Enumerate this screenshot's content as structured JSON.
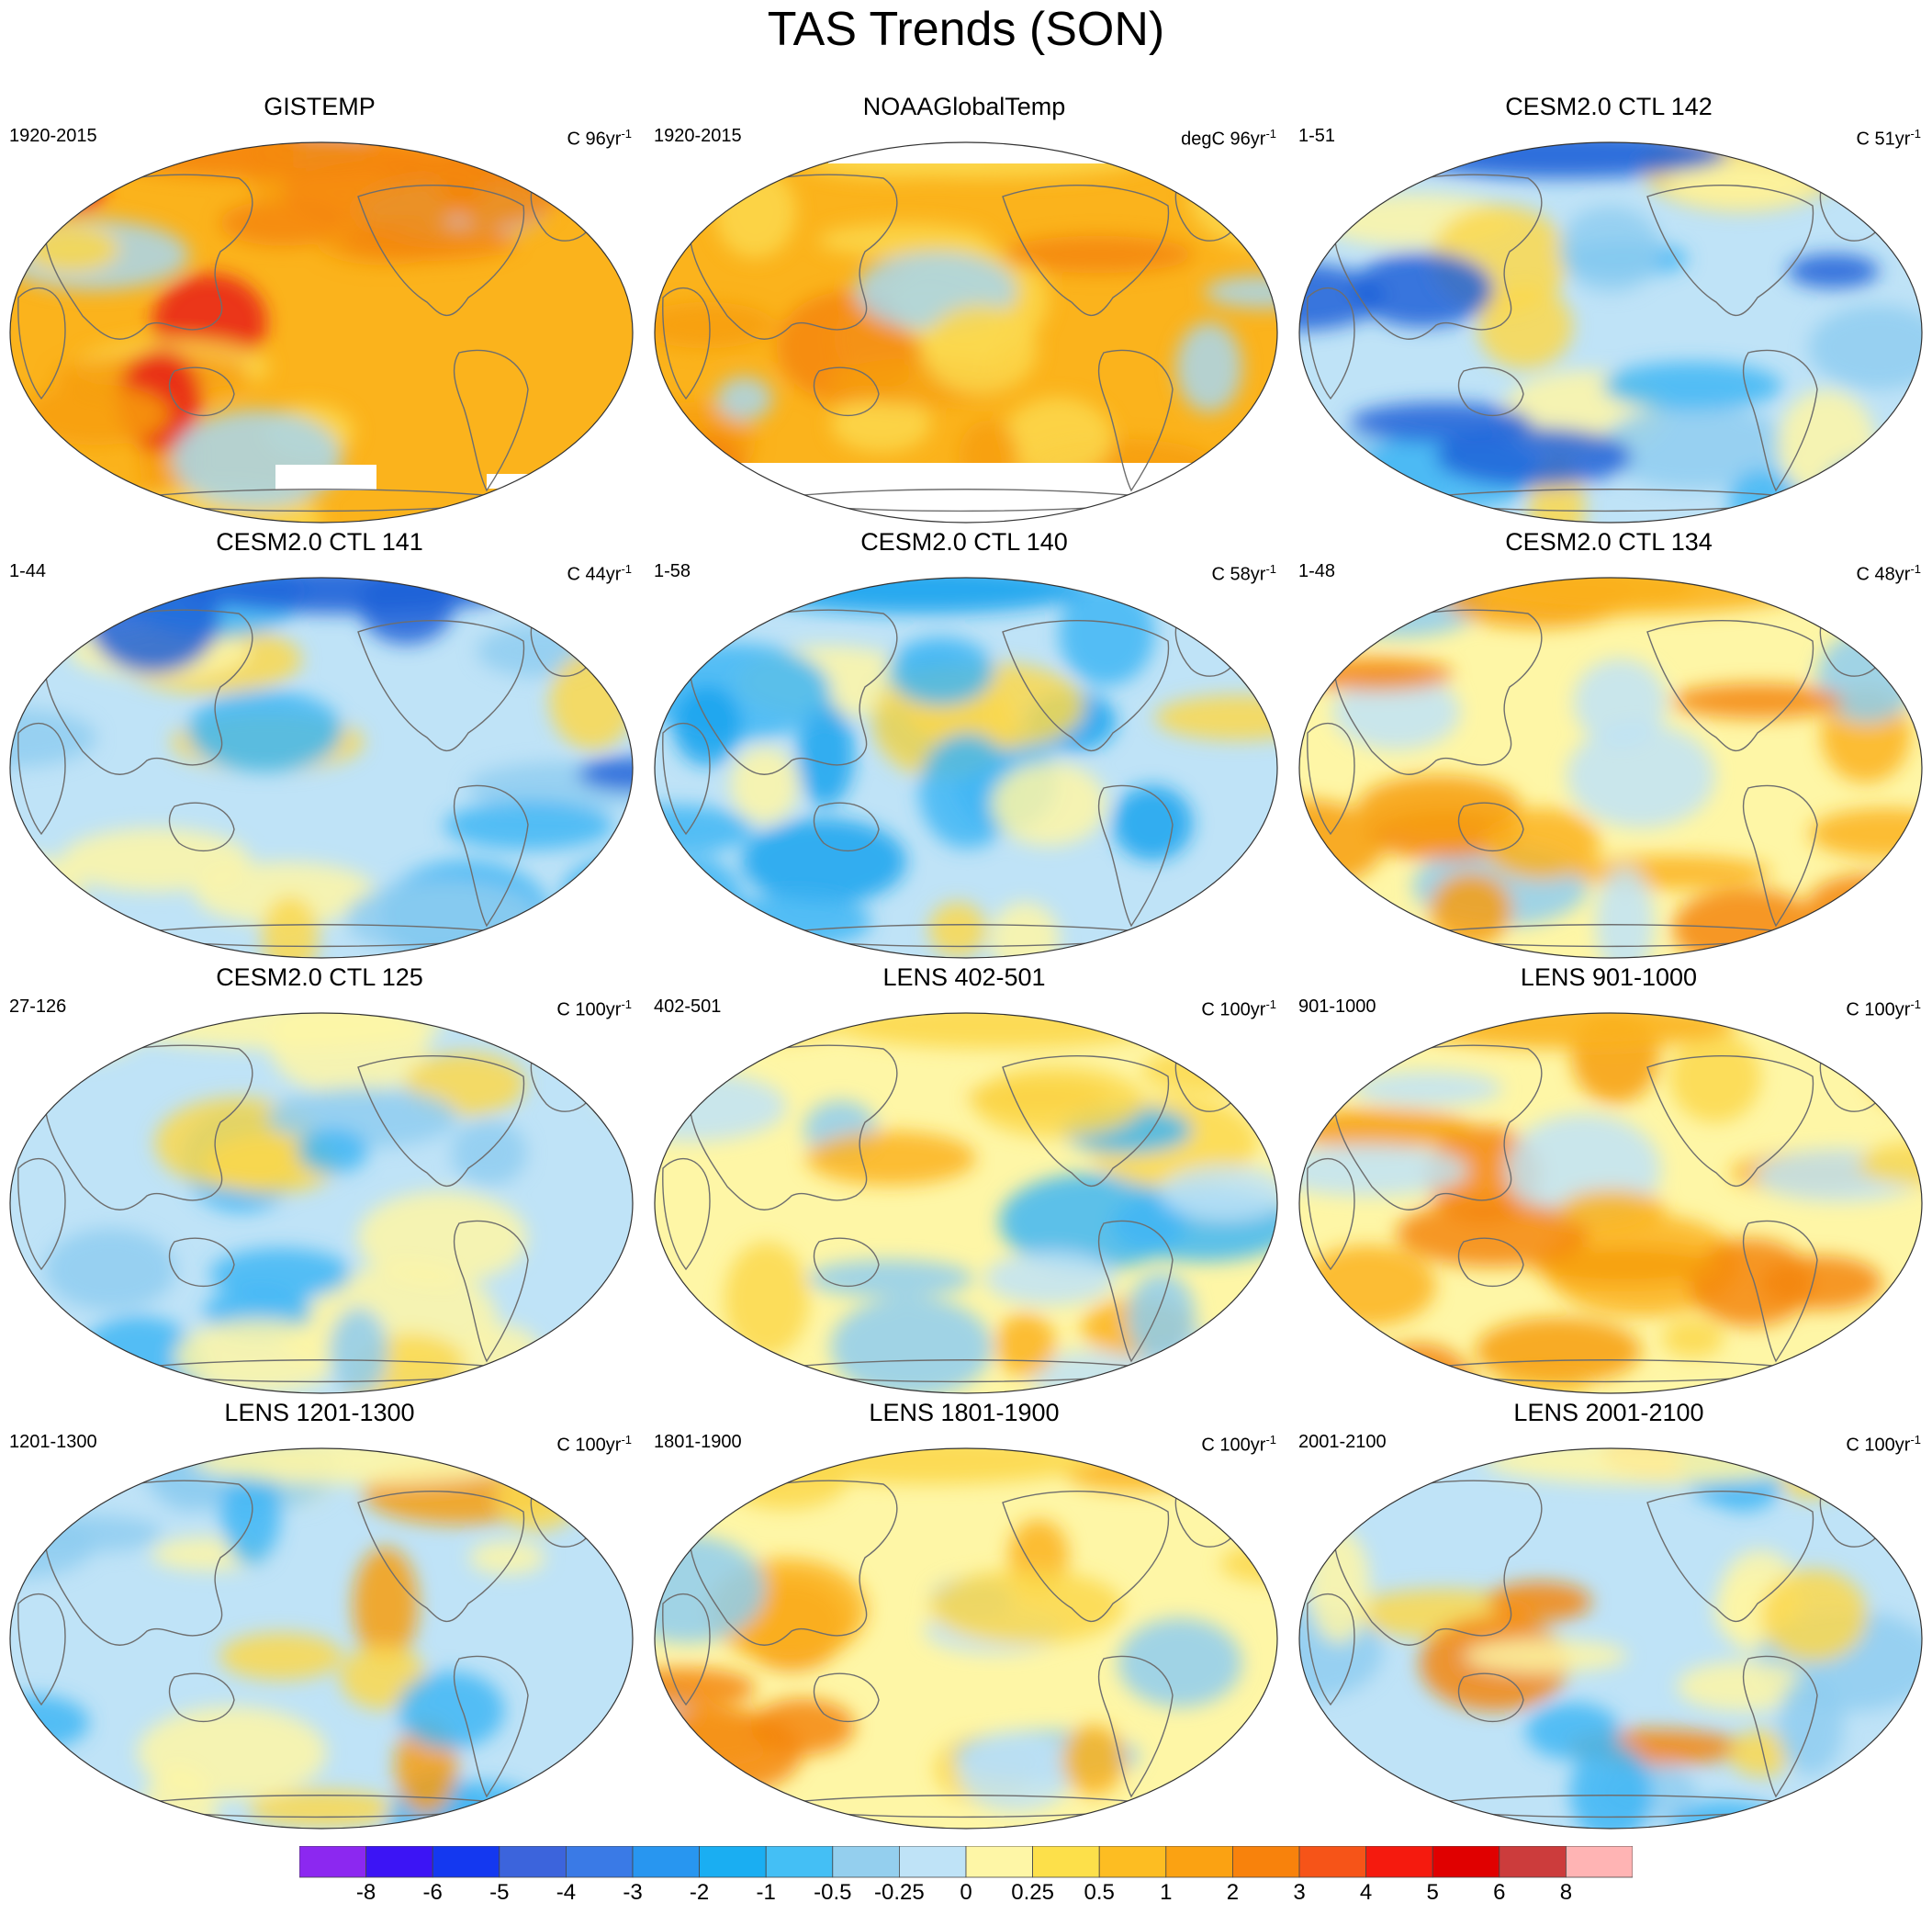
{
  "title": "TAS Trends (SON)",
  "panels": [
    {
      "title": "GISTEMP",
      "left_label": "1920-2015",
      "unit": "C",
      "years": "96",
      "base": "#fbb31c",
      "blobs": [
        "#f79d10",
        "#f5860b",
        "#e8201a",
        "#fcd84d",
        "#a8d6ef"
      ],
      "mask": "gistemp"
    },
    {
      "title": "NOAAGlobalTemp",
      "left_label": "1920-2015",
      "unit": "degC",
      "years": "96",
      "base": "#fbb31c",
      "blobs": [
        "#f79d10",
        "#fcd84d",
        "#a8d6ef",
        "#f5860b",
        "#fcd84d"
      ],
      "mask": "noaa"
    },
    {
      "title": "CESM2.0 CTL 142",
      "left_label": "1-51",
      "unit": "C",
      "years": "51",
      "base": "#bfe3f7",
      "blobs": [
        "#3fb6f4",
        "#1e62d8",
        "#fef6a6",
        "#fcd84d",
        "#8fcdf0"
      ],
      "mask": ""
    },
    {
      "title": "CESM2.0 CTL 141",
      "left_label": "1-44",
      "unit": "C",
      "years": "44",
      "base": "#bfe3f7",
      "blobs": [
        "#3fb6f4",
        "#1e62d8",
        "#fef6a6",
        "#fcd84d",
        "#8fcdf0"
      ],
      "mask": ""
    },
    {
      "title": "CESM2.0 CTL 140",
      "left_label": "1-58",
      "unit": "C",
      "years": "58",
      "base": "#bfe3f7",
      "blobs": [
        "#3fb6f4",
        "#1aa3ee",
        "#fef6a6",
        "#fcd84d",
        "#3fb6f4"
      ],
      "mask": ""
    },
    {
      "title": "CESM2.0 CTL 134",
      "left_label": "1-48",
      "unit": "C",
      "years": "48",
      "base": "#fef6a6",
      "blobs": [
        "#f5860b",
        "#fbb31c",
        "#8fcdf0",
        "#bfe3f7",
        "#f79d10"
      ],
      "mask": ""
    },
    {
      "title": "CESM2.0 CTL 125",
      "left_label": "27-126",
      "unit": "C",
      "years": "100",
      "base": "#bfe3f7",
      "blobs": [
        "#3fb6f4",
        "#fef6a6",
        "#fcd84d",
        "#8fcdf0",
        "#fef6a6"
      ],
      "mask": ""
    },
    {
      "title": "LENS 402-501",
      "left_label": "402-501",
      "unit": "C",
      "years": "100",
      "base": "#fef6a6",
      "blobs": [
        "#bfe3f7",
        "#fcd84d",
        "#8fcdf0",
        "#fbb31c",
        "#3fb6f4"
      ],
      "mask": ""
    },
    {
      "title": "LENS 901-1000",
      "left_label": "901-1000",
      "unit": "C",
      "years": "100",
      "base": "#fef6a6",
      "blobs": [
        "#f5860b",
        "#fbb31c",
        "#bfe3f7",
        "#fcd84d",
        "#f79d10"
      ],
      "mask": ""
    },
    {
      "title": "LENS 1201-1300",
      "left_label": "1201-1300",
      "unit": "C",
      "years": "100",
      "base": "#bfe3f7",
      "blobs": [
        "#3fb6f4",
        "#fef6a6",
        "#fcd84d",
        "#f79d10",
        "#8fcdf0"
      ],
      "mask": ""
    },
    {
      "title": "LENS 1801-1900",
      "left_label": "1801-1900",
      "unit": "C",
      "years": "100",
      "base": "#fef6a6",
      "blobs": [
        "#f5860b",
        "#fcd84d",
        "#bfe3f7",
        "#fbb31c",
        "#8fcdf0"
      ],
      "mask": ""
    },
    {
      "title": "LENS 2001-2100",
      "left_label": "2001-2100",
      "unit": "C",
      "years": "100",
      "base": "#bfe3f7",
      "blobs": [
        "#3fb6f4",
        "#fef6a6",
        "#f5860b",
        "#fcd84d",
        "#8fcdf0"
      ],
      "mask": ""
    }
  ],
  "colorbar": {
    "colors": [
      "#8c28f0",
      "#3c14f5",
      "#1438f0",
      "#3c64dc",
      "#3a7ae6",
      "#2896f0",
      "#1aaef2",
      "#44bff5",
      "#94cfee",
      "#bfe3f7",
      "#fef6a6",
      "#fde04a",
      "#fdbd22",
      "#fba212",
      "#f8820c",
      "#f65418",
      "#f51a0e",
      "#e00000",
      "#cc3c3c",
      "#ffb4b4"
    ],
    "labels": [
      "-8",
      "-6",
      "-5",
      "-4",
      "-3",
      "-2",
      "-1",
      "-0.5",
      "-0.25",
      "0",
      "0.25",
      "0.5",
      "1",
      "2",
      "3",
      "4",
      "5",
      "6",
      "8"
    ]
  }
}
